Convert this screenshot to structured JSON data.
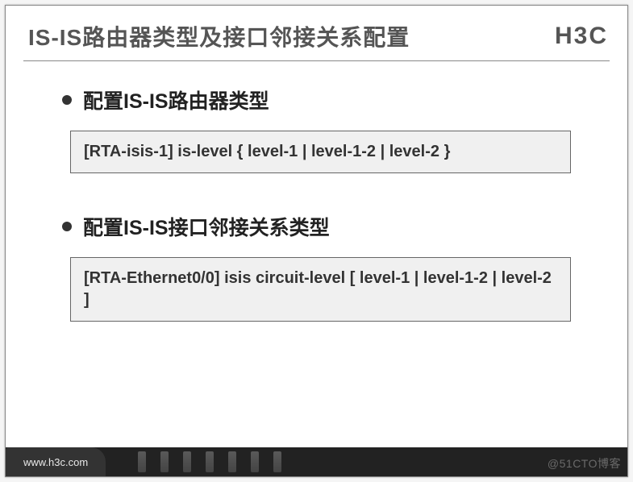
{
  "header": {
    "title": "IS-IS路由器类型及接口邻接关系配置",
    "brand": "H3C"
  },
  "sections": [
    {
      "bullet": "配置IS-IS路由器类型",
      "code": "[RTA-isis-1] is-level { level-1 | level-1-2 | level-2 }"
    },
    {
      "bullet": "配置IS-IS接口邻接关系类型",
      "code": "[RTA-Ethernet0/0] isis circuit-level [ level-1 | level-1-2 | level-2 ]"
    }
  ],
  "footer": {
    "url": "www.h3c.com"
  },
  "watermark": "@51CTO博客",
  "style": {
    "title_color": "#555555",
    "brand_color": "#555555",
    "bullet_text_color": "#222222",
    "codebox_bg": "#f0f0f0",
    "codebox_border": "#666666",
    "footer_bg": "#222222",
    "footer_left_bg": "#333333",
    "title_fontsize": 28,
    "bullet_fontsize": 25,
    "code_fontsize": 20
  }
}
